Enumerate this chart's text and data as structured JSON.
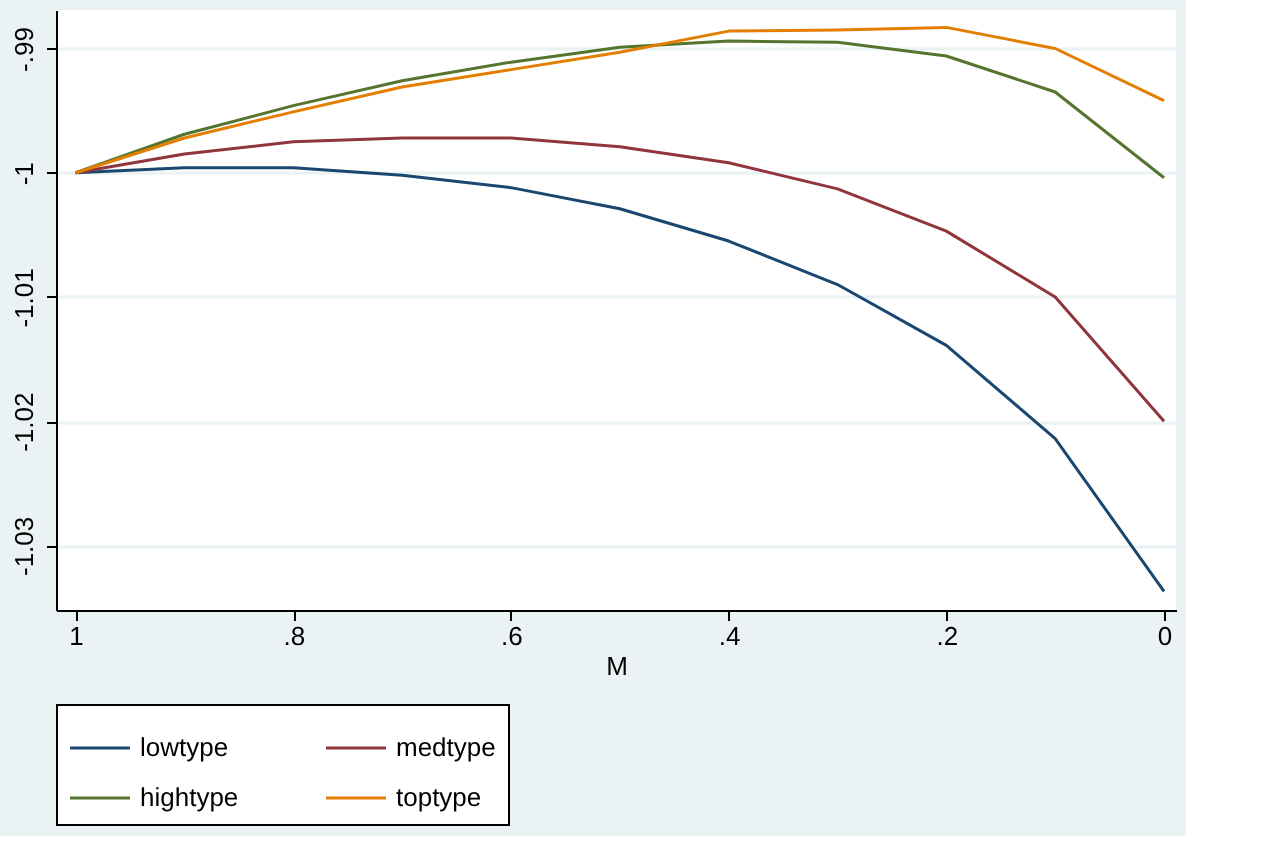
{
  "chart_data": {
    "type": "line",
    "xlabel": "M",
    "x": [
      1,
      0.9,
      0.8,
      0.7,
      0.6,
      0.5,
      0.4,
      0.3,
      0.2,
      0.1,
      0
    ],
    "series": [
      {
        "name": "lowtype",
        "color": "#1a476f",
        "values": [
          -1.0,
          -0.9996,
          -0.9996,
          -1.0002,
          -1.0012,
          -1.0029,
          -1.0055,
          -1.009,
          -1.0139,
          -1.0214,
          -1.0337
        ]
      },
      {
        "name": "medtype",
        "color": "#90353b",
        "values": [
          -1.0,
          -0.9985,
          -0.9975,
          -0.9972,
          -0.9972,
          -0.9979,
          -0.9992,
          -1.0013,
          -1.0047,
          -1.01,
          -1.02
        ]
      },
      {
        "name": "hightype",
        "color": "#55752f",
        "values": [
          -1.0,
          -0.9969,
          -0.9946,
          -0.9926,
          -0.9911,
          -0.9899,
          -0.9894,
          -0.9895,
          -0.9906,
          -0.9935,
          -1.0004
        ]
      },
      {
        "name": "toptype",
        "color": "#e37e00",
        "values": [
          -1.0,
          -0.9972,
          -0.9951,
          -0.9931,
          -0.9917,
          -0.9903,
          -0.9886,
          -0.9885,
          -0.9883,
          -0.99,
          -0.9942
        ]
      }
    ],
    "xlim": [
      1.018,
      -0.011
    ],
    "ylim": [
      -1.0352,
      -0.9869
    ],
    "xticks": [
      1,
      {
        "value": 0.8,
        "label": ".8"
      },
      {
        "value": 0.6,
        "label": ".6"
      },
      {
        "value": 0.4,
        "label": ".4"
      },
      {
        "value": 0.2,
        "label": ".2"
      },
      0
    ],
    "yticks": [
      {
        "value": -0.99,
        "label": "-.99"
      },
      -1,
      -1.01,
      -1.02,
      -1.03
    ],
    "grid": "y",
    "legend": "bottom",
    "marker": "none",
    "line_style": "solid"
  }
}
